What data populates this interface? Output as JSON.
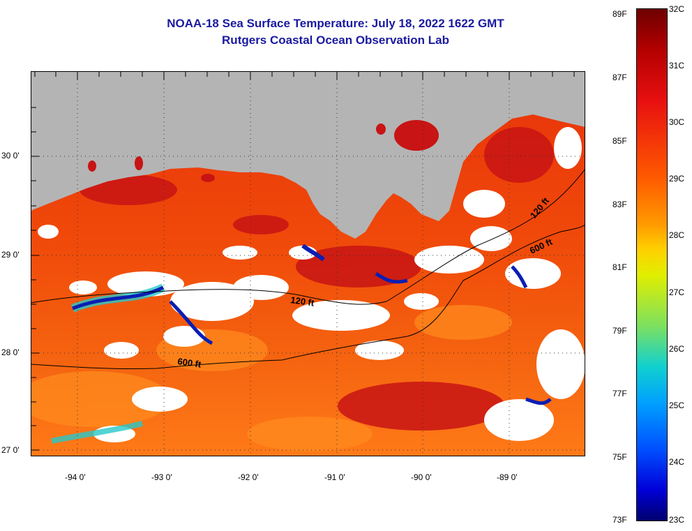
{
  "title_line1": "NOAA-18 Sea Surface Temperature:  July 18, 2022 1622 GMT",
  "title_line2": "Rutgers Coastal Ocean Observation Lab",
  "map": {
    "latitude_labels": [
      "30 0'",
      "29 0'",
      "28 0'",
      "27 0'"
    ],
    "longitude_labels": [
      "-94 0'",
      "-93 0'",
      "-92 0'",
      "-91 0'",
      "-90 0'",
      "-89 0'"
    ],
    "contour_labels": [
      "120 ft",
      "600 ft",
      "120 ft",
      "600 ft"
    ],
    "colors": {
      "land": "#b4b4b4",
      "cloud": "#ffffff",
      "warm_water": "#f0440a",
      "hot_water": "#c81414",
      "cool_water": "#ff8a1e",
      "cold_filament": "#0a1eb4",
      "mid_filament": "#28c8c8"
    }
  },
  "colorbar": {
    "fahrenheit_labels": [
      "89F",
      "87F",
      "85F",
      "83F",
      "81F",
      "79F",
      "77F",
      "75F",
      "73F"
    ],
    "celsius_labels": [
      "32C",
      "31C",
      "30C",
      "29C",
      "28C",
      "27C",
      "26C",
      "25C",
      "24C",
      "23C"
    ]
  }
}
